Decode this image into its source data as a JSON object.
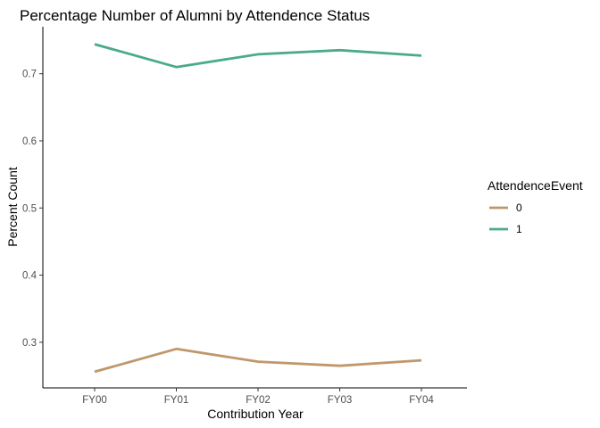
{
  "chart_data": {
    "type": "line",
    "title": "Percentage Number of Alumni by Attendence Status",
    "xlabel": "Contribution Year",
    "ylabel": "Percent Count",
    "categories": [
      "FY00",
      "FY01",
      "FY02",
      "FY03",
      "FY04"
    ],
    "yticks": [
      "0.3",
      "0.4",
      "0.5",
      "0.6",
      "0.7"
    ],
    "ylim": [
      0.232,
      0.77
    ],
    "grid": false,
    "legend": {
      "title": "AttendenceEvent",
      "position": "right"
    },
    "series": [
      {
        "name": "0",
        "color": "#c0976a",
        "values": [
          0.256,
          0.29,
          0.271,
          0.265,
          0.273
        ]
      },
      {
        "name": "1",
        "color": "#4aab86",
        "values": [
          0.744,
          0.71,
          0.729,
          0.735,
          0.727
        ]
      }
    ]
  }
}
